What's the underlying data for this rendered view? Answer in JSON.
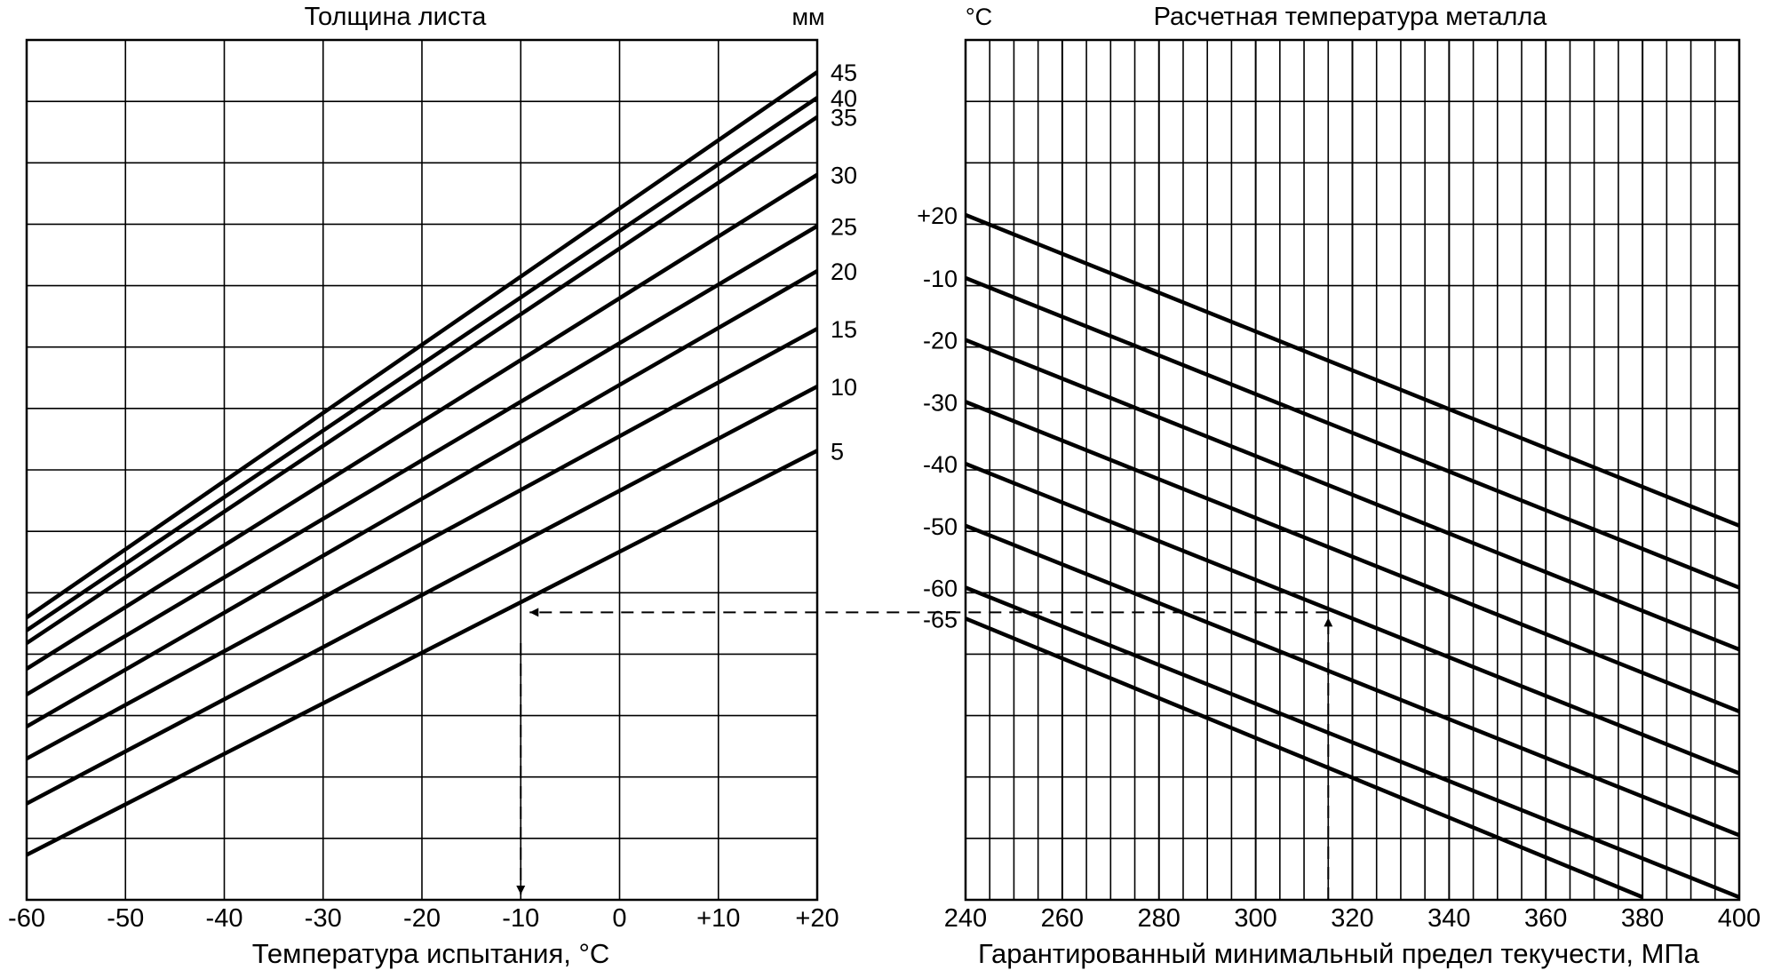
{
  "figure": {
    "line_color": "#000000",
    "background": "#ffffff"
  },
  "chart_data": [
    {
      "id": "left",
      "type": "line",
      "title": "Толщина листа",
      "unit_label": "мм",
      "xlabel": "Температура испытания, °C",
      "x_ticks": [
        "-60",
        "-50",
        "-40",
        "-30",
        "-20",
        "-10",
        "0",
        "+10",
        "+20"
      ],
      "xlim": [
        -60,
        20
      ],
      "grid": true,
      "series": [
        {
          "name": "45",
          "x": [
            -60,
            20
          ],
          "y": [
            -60,
            25
          ]
        },
        {
          "name": "40",
          "x": [
            -60,
            20
          ],
          "y": [
            -62,
            21
          ]
        },
        {
          "name": "35",
          "x": [
            -60,
            20
          ],
          "y": [
            -64,
            18
          ]
        },
        {
          "name": "30",
          "x": [
            -60,
            20
          ],
          "y": [
            -68,
            9
          ]
        },
        {
          "name": "25",
          "x": [
            -60,
            20
          ],
          "y": [
            -72,
            1
          ]
        },
        {
          "name": "20",
          "x": [
            -60,
            20
          ],
          "y": [
            -77,
            -6
          ]
        },
        {
          "name": "15",
          "x": [
            -60,
            20
          ],
          "y": [
            -82,
            -15
          ]
        },
        {
          "name": "10",
          "x": [
            -60,
            20
          ],
          "y": [
            -89,
            -24
          ]
        },
        {
          "name": "5",
          "x": [
            -60,
            20
          ],
          "y": [
            -97,
            -34
          ]
        }
      ],
      "annotation": {
        "from": {
          "x": -10,
          "y": -64
        },
        "to_x_axis": -10
      }
    },
    {
      "id": "right",
      "type": "line",
      "title": "Расчетная температура металла",
      "unit_label": "°C",
      "xlabel": "Гарантированный минимальный предел текучести, МПа",
      "x_ticks": [
        "240",
        "260",
        "280",
        "300",
        "320",
        "340",
        "360",
        "380",
        "400"
      ],
      "y_ticks": [
        "+20",
        "-10",
        "-20",
        "-30",
        "-40",
        "-50",
        "-60",
        "-65"
      ],
      "xlim": [
        240,
        400
      ],
      "grid": true,
      "series": [
        {
          "name": "+20",
          "x": [
            240,
            400
          ],
          "y": [
            20,
            -50
          ]
        },
        {
          "name": "-10",
          "x": [
            240,
            400
          ],
          "y": [
            -10,
            -60
          ]
        },
        {
          "name": "-20",
          "x": [
            240,
            400
          ],
          "y": [
            -20,
            -70
          ]
        },
        {
          "name": "-30",
          "x": [
            240,
            400
          ],
          "y": [
            -30,
            -80
          ]
        },
        {
          "name": "-40",
          "x": [
            240,
            400
          ],
          "y": [
            -40,
            -90
          ]
        },
        {
          "name": "-50",
          "x": [
            240,
            400
          ],
          "y": [
            -50,
            -100
          ]
        },
        {
          "name": "-60",
          "x": [
            240,
            400
          ],
          "y": [
            -60,
            -110
          ]
        },
        {
          "name": "-65",
          "x": [
            240,
            380
          ],
          "y": [
            -65,
            -110
          ]
        }
      ],
      "annotation": {
        "from_x": 315,
        "to": {
          "x": 315,
          "y": -64
        }
      }
    }
  ]
}
